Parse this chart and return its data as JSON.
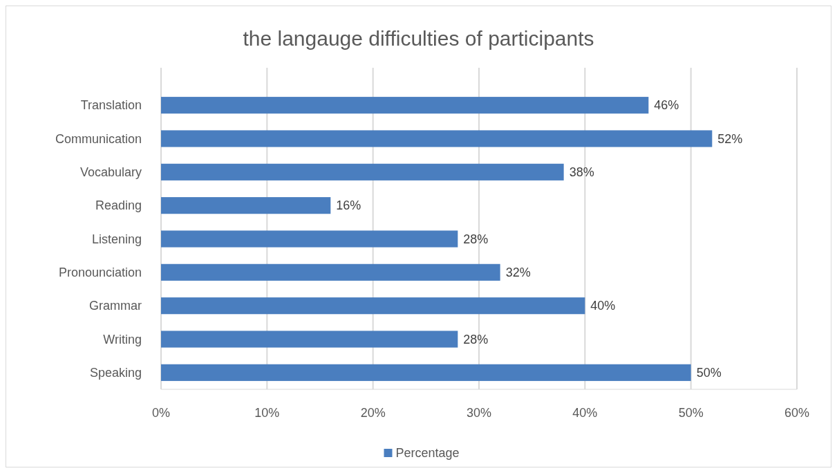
{
  "chart_data": {
    "type": "bar",
    "orientation": "horizontal",
    "title": "the  langauge difficulties of participants",
    "categories": [
      "Translation",
      "Communication",
      "Vocabulary",
      "Reading",
      "Listening",
      "Pronounciation",
      "Grammar",
      "Writing",
      "Speaking"
    ],
    "series": [
      {
        "name": "Percentage",
        "color": "#4a7ebf",
        "values": [
          46,
          52,
          38,
          16,
          28,
          32,
          40,
          28,
          50
        ],
        "value_labels": [
          "46%",
          "52%",
          "38%",
          "16%",
          "28%",
          "32%",
          "40%",
          "28%",
          "50%"
        ]
      }
    ],
    "xlim": [
      0,
      60
    ],
    "xticks": [
      {
        "value": 0,
        "label": "0%"
      },
      {
        "value": 10,
        "label": "10%"
      },
      {
        "value": 20,
        "label": "20%"
      },
      {
        "value": 30,
        "label": "30%"
      },
      {
        "value": 40,
        "label": "40%"
      },
      {
        "value": 50,
        "label": "50%"
      },
      {
        "value": 60,
        "label": "60%"
      }
    ],
    "grid": "x",
    "legend": "bottom"
  }
}
